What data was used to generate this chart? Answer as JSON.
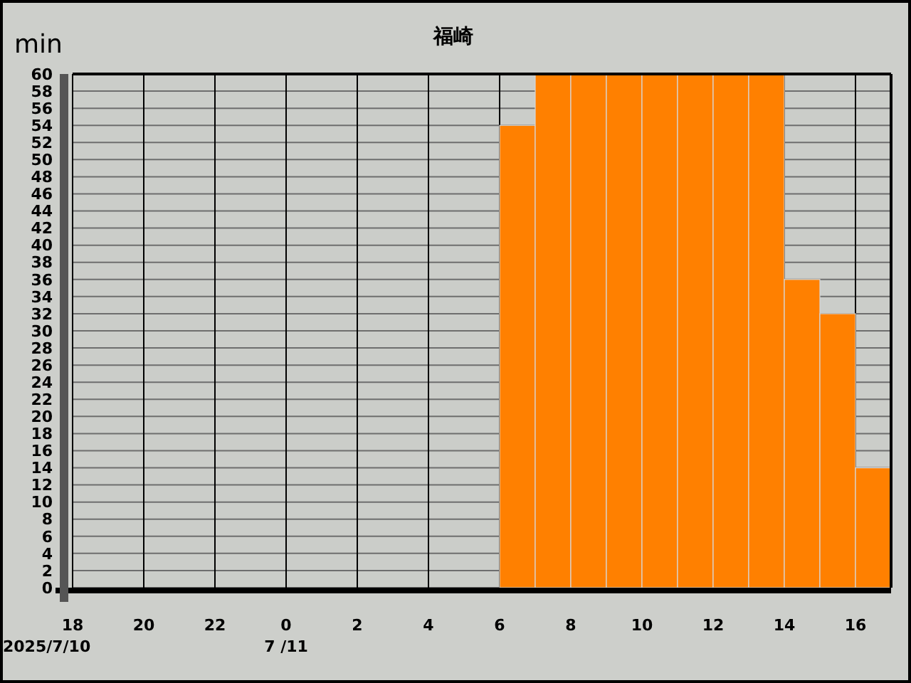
{
  "chart_data": {
    "type": "histogram",
    "title": "福崎",
    "ylabel": "min",
    "color": "#ff8000",
    "bins": [
      "2025-07-10T18:00",
      "2025-07-10T19:00",
      "2025-07-10T20:00",
      "2025-07-10T21:00",
      "2025-07-10T22:00",
      "2025-07-10T23:00",
      "2025-07-11T00:00",
      "2025-07-11T01:00",
      "2025-07-11T02:00",
      "2025-07-11T03:00",
      "2025-07-11T04:00",
      "2025-07-11T05:00",
      "2025-07-11T06:00",
      "2025-07-11T07:00",
      "2025-07-11T08:00",
      "2025-07-11T09:00",
      "2025-07-11T10:00",
      "2025-07-11T11:00",
      "2025-07-11T12:00",
      "2025-07-11T13:00",
      "2025-07-11T14:00",
      "2025-07-11T15:00",
      "2025-07-11T16:00",
      "2025-07-11T17:00"
    ],
    "values": [
      0,
      0,
      0,
      0,
      0,
      0,
      0,
      0,
      0,
      0,
      0,
      0,
      54,
      60,
      60,
      60,
      60,
      60,
      60,
      60,
      36,
      32,
      14
    ],
    "xlim": [
      "2025-07-10T18:00",
      "2025-07-11T17:00"
    ],
    "xticks": [
      {
        "value": "2025-07-10T18:00",
        "label": "18"
      },
      {
        "value": "2025-07-10T20:00",
        "label": "20"
      },
      {
        "value": "2025-07-10T22:00",
        "label": "22"
      },
      {
        "value": "2025-07-11T00:00",
        "label": "0"
      },
      {
        "value": "2025-07-11T02:00",
        "label": "2"
      },
      {
        "value": "2025-07-11T04:00",
        "label": "4"
      },
      {
        "value": "2025-07-11T06:00",
        "label": "6"
      },
      {
        "value": "2025-07-11T08:00",
        "label": "8"
      },
      {
        "value": "2025-07-11T10:00",
        "label": "10"
      },
      {
        "value": "2025-07-11T12:00",
        "label": "12"
      },
      {
        "value": "2025-07-11T14:00",
        "label": "14"
      },
      {
        "value": "2025-07-11T16:00",
        "label": "16"
      }
    ],
    "ylim": [
      0,
      60
    ],
    "yticks": [
      0,
      2,
      4,
      6,
      8,
      10,
      12,
      14,
      16,
      18,
      20,
      22,
      24,
      26,
      28,
      30,
      32,
      34,
      36,
      38,
      40,
      42,
      44,
      46,
      48,
      50,
      52,
      54,
      56,
      58,
      60
    ],
    "grid": true,
    "annotations": [
      "2025/7/10",
      "7 /11"
    ]
  }
}
